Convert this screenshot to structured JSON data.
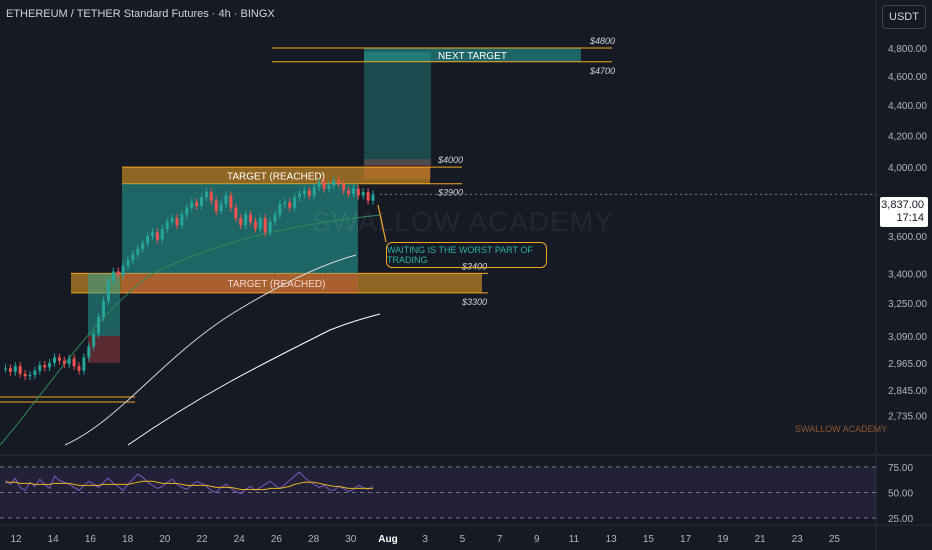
{
  "header": {
    "title": "ETHEREUM / TETHER Standard Futures · 4h · BINGX",
    "currency": "USDT"
  },
  "price_badge": {
    "price": "3,837.00",
    "countdown": "17:14"
  },
  "watermark": "SWALLOW ACADEMY",
  "watermark_small": "SWALLOW ACADEMY",
  "callout": "WAITING IS THE WORST PART OF TRADING",
  "colors": {
    "background": "#161a25",
    "up": "#26a69a",
    "down": "#ef5350",
    "target_orange": "#f5a623",
    "target_green": "#1e7f6c",
    "rsi": "#7e57c2",
    "rsi_ma": "#e6b422"
  },
  "chart_data": {
    "type": "candlestick",
    "y_axis": {
      "scale": "log",
      "ticks": [
        "4,800.00",
        "4,600.00",
        "4,400.00",
        "4,200.00",
        "4,000.00",
        "3,600.00",
        "3,400.00",
        "3,250.00",
        "3,090.00",
        "2,965.00",
        "2,845.00",
        "2,735.00"
      ],
      "tick_values": [
        4800,
        4600,
        4400,
        4200,
        4000,
        3600,
        3400,
        3250,
        3090,
        2965,
        2845,
        2735
      ]
    },
    "x_axis": {
      "ticks": [
        "12",
        "14",
        "16",
        "18",
        "20",
        "22",
        "24",
        "26",
        "28",
        "30",
        "Aug",
        "3",
        "5",
        "7",
        "9",
        "11",
        "13",
        "15",
        "17",
        "19",
        "21",
        "23",
        "25"
      ]
    },
    "price_levels": [
      {
        "label": "$4800",
        "value": 4800
      },
      {
        "label": "$4700",
        "value": 4700
      },
      {
        "label": "$4000",
        "value": 4000
      },
      {
        "label": "$3900",
        "value": 3900
      },
      {
        "label": "$3400",
        "value": 3400
      },
      {
        "label": "$3300",
        "value": 3300
      }
    ],
    "zones": [
      {
        "label": "NEXT TARGET",
        "low": 4700,
        "high": 4800
      },
      {
        "label": "TARGET (REACHED)",
        "low": 3900,
        "high": 4000
      },
      {
        "label": "TARGET (REACHED)",
        "low": 3300,
        "high": 3400
      }
    ],
    "candles_close": [
      2940,
      2925,
      2950,
      2915,
      2905,
      2910,
      2930,
      2955,
      2945,
      2965,
      2990,
      2975,
      2960,
      2985,
      2950,
      2930,
      2990,
      3040,
      3100,
      3180,
      3260,
      3360,
      3410,
      3390,
      3440,
      3470,
      3500,
      3530,
      3560,
      3600,
      3620,
      3580,
      3640,
      3680,
      3700,
      3660,
      3720,
      3760,
      3790,
      3770,
      3820,
      3850,
      3800,
      3740,
      3780,
      3830,
      3760,
      3700,
      3660,
      3720,
      3680,
      3640,
      3700,
      3620,
      3680,
      3720,
      3780,
      3790,
      3760,
      3820,
      3840,
      3860,
      3830,
      3880,
      3910,
      3870,
      3890,
      3920,
      3900,
      3860,
      3840,
      3870,
      3830,
      3850,
      3800,
      3837
    ],
    "rsi": {
      "levels": [
        "75.00",
        "50.00",
        "25.00"
      ],
      "level_values": [
        75,
        50,
        25
      ],
      "values": [
        62,
        58,
        64,
        55,
        52,
        60,
        56,
        63,
        58,
        54,
        66,
        62,
        60,
        58,
        55,
        52,
        57,
        61,
        58,
        55,
        60,
        64,
        59,
        56,
        52,
        58,
        63,
        68,
        65,
        60,
        57,
        54,
        56,
        60,
        63,
        58,
        55,
        53,
        57,
        61,
        59,
        56,
        52,
        50,
        55,
        58,
        54,
        51,
        49,
        53,
        56,
        52,
        55,
        58,
        61,
        57,
        54,
        58,
        62,
        66,
        70,
        65,
        61,
        58,
        55,
        57,
        53,
        52,
        56,
        54,
        51,
        53,
        57,
        55,
        53,
        56
      ],
      "ma_values": [
        60,
        60,
        60,
        59,
        59,
        59,
        58,
        58,
        58,
        58,
        59,
        59,
        59,
        59,
        58,
        57,
        57,
        57,
        57,
        57,
        58,
        58,
        58,
        58,
        58,
        58,
        59,
        60,
        61,
        61,
        61,
        60,
        59,
        59,
        59,
        59,
        58,
        57,
        57,
        57,
        57,
        57,
        56,
        55,
        55,
        55,
        55,
        54,
        53,
        53,
        53,
        53,
        53,
        53,
        54,
        54,
        54,
        55,
        56,
        58,
        59,
        60,
        60,
        60,
        59,
        58,
        57,
        56,
        56,
        55,
        54,
        54,
        54,
        54,
        54,
        54
      ]
    }
  }
}
